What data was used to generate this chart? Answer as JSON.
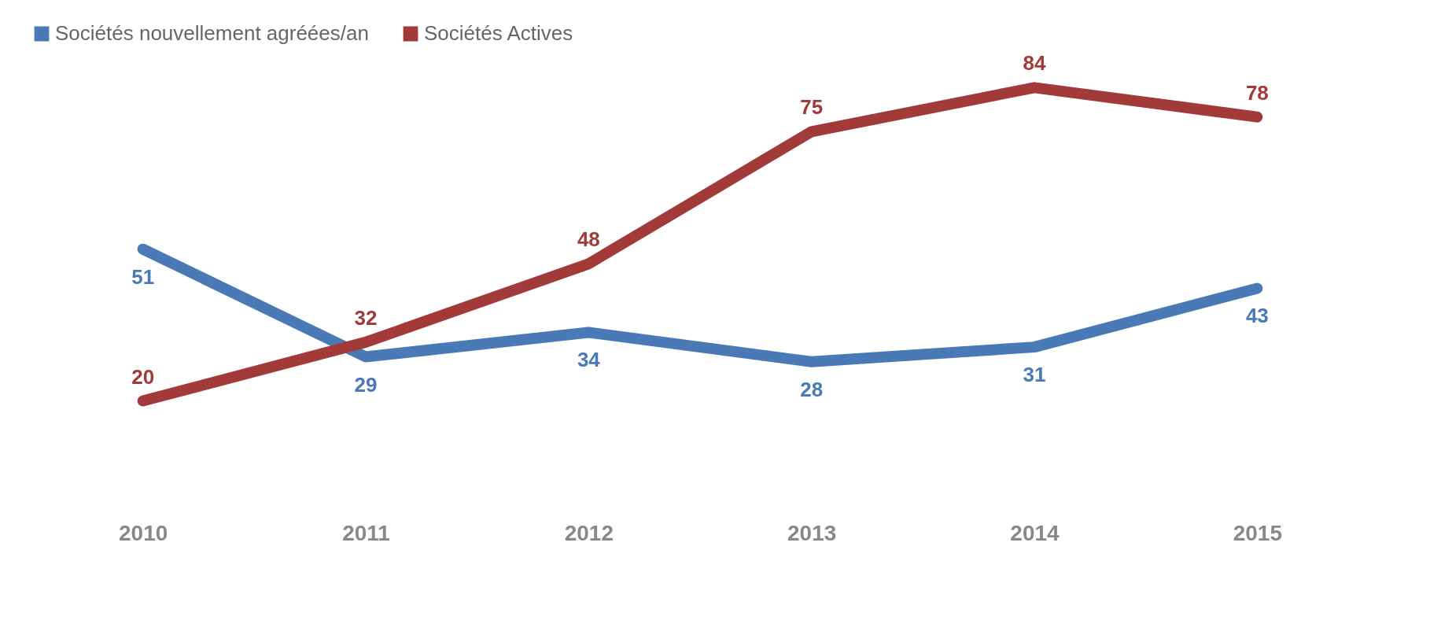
{
  "chart_data": {
    "type": "line",
    "categories": [
      "2010",
      "2011",
      "2012",
      "2013",
      "2014",
      "2015"
    ],
    "series": [
      {
        "name": "Sociétés nouvellement agréées/an",
        "color": "#4a7ab5",
        "values": [
          51,
          29,
          34,
          28,
          31,
          43
        ]
      },
      {
        "name": "Sociétés Actives",
        "color": "#a33a3a",
        "values": [
          20,
          32,
          48,
          75,
          84,
          78
        ]
      }
    ],
    "data_labels": true,
    "legend": "top",
    "grid": false
  }
}
